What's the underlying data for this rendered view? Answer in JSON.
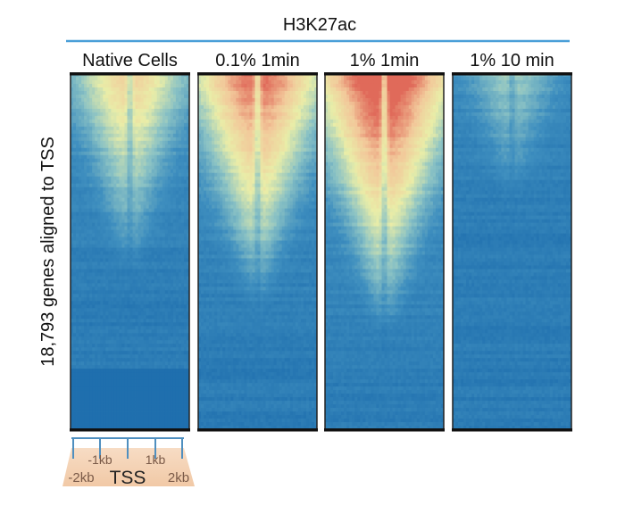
{
  "chart_data": {
    "type": "heatmap",
    "title": "H3K27ac",
    "ylabel": "18,793 genes aligned to TSS",
    "xlabel": "TSS",
    "x_ticks": [
      "-2kb",
      "-1kb",
      "TSS",
      "1kb",
      "2kb"
    ],
    "x_range_kb": [
      -2,
      2
    ],
    "rows": 18793,
    "colormap": [
      "#1f6fae",
      "#3f8fbf",
      "#8cc3c4",
      "#e9eda8",
      "#f2c89a",
      "#e06a5a"
    ],
    "panels": [
      {
        "label": "Native Cells",
        "peak_signal": 0.62,
        "spread": 0.62,
        "decay_depth": 0.55
      },
      {
        "label": "0.1% 1min",
        "peak_signal": 0.88,
        "spread": 0.78,
        "decay_depth": 0.65
      },
      {
        "label": "1% 1min",
        "peak_signal": 1.0,
        "spread": 0.85,
        "decay_depth": 0.72
      },
      {
        "label": "1% 10 min",
        "peak_signal": 0.32,
        "spread": 0.45,
        "decay_depth": 0.35
      }
    ]
  }
}
